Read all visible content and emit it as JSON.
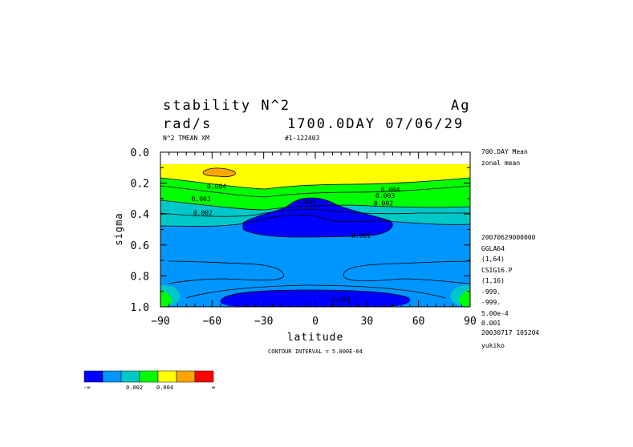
{
  "header": {
    "title_left": "stability N^2",
    "title_right": "Ag",
    "units": "rad/s",
    "time": "1700.0DAY 07/06/29",
    "subtitle_left": "N^2 TMEAN XM",
    "subtitle_right": "#1-122403"
  },
  "side_info": [
    "700.DAY Mean",
    "zonal mean",
    "20070629000000",
    "GGLA64",
    "(1,64)",
    "CSIG16.P",
    "(1,16)",
    "-999.",
    "-999.",
    "5.00e-4",
    "0.001",
    "20030717 105204",
    "yukiko"
  ],
  "footer": {
    "contour_interval": "CONTOUR INTERVAL = 5.000E-04"
  },
  "colorbar": {
    "colors": [
      "#0000ff",
      "#0096ff",
      "#00c8c8",
      "#00ff00",
      "#ffff00",
      "#ffa500",
      "#ff0000"
    ],
    "labels": [
      "-∞",
      "0.002",
      "0.004",
      "∞"
    ]
  },
  "chart_data": {
    "type": "heatmap",
    "title": "stability N^2",
    "xlabel": "latitude",
    "ylabel": "sigma",
    "x_ticks": [
      "−90",
      "−60",
      "−30",
      "0",
      "30",
      "60",
      "90"
    ],
    "y_ticks": [
      "0.0",
      "0.2",
      "0.4",
      "0.6",
      "0.8",
      "1.0"
    ],
    "xlim": [
      -90,
      90
    ],
    "ylim": [
      1.0,
      0.0
    ],
    "y_inverted": true,
    "contour_labels": [
      {
        "text": "0.004",
        "x": -63,
        "y": 0.22
      },
      {
        "text": "0.003",
        "x": -72,
        "y": 0.3
      },
      {
        "text": "0.002",
        "x": -71,
        "y": 0.39
      },
      {
        "text": "0.001",
        "x": -11,
        "y": 0.32
      },
      {
        "text": "0.001",
        "x": 21,
        "y": 0.54
      },
      {
        "text": "0.004",
        "x": 38,
        "y": 0.24
      },
      {
        "text": "0.003",
        "x": 35,
        "y": 0.28
      },
      {
        "text": "0.002",
        "x": 34,
        "y": 0.33
      },
      {
        "text": "0.001",
        "x": 9,
        "y": 0.95
      }
    ],
    "contour_interval": 0.0005
  }
}
